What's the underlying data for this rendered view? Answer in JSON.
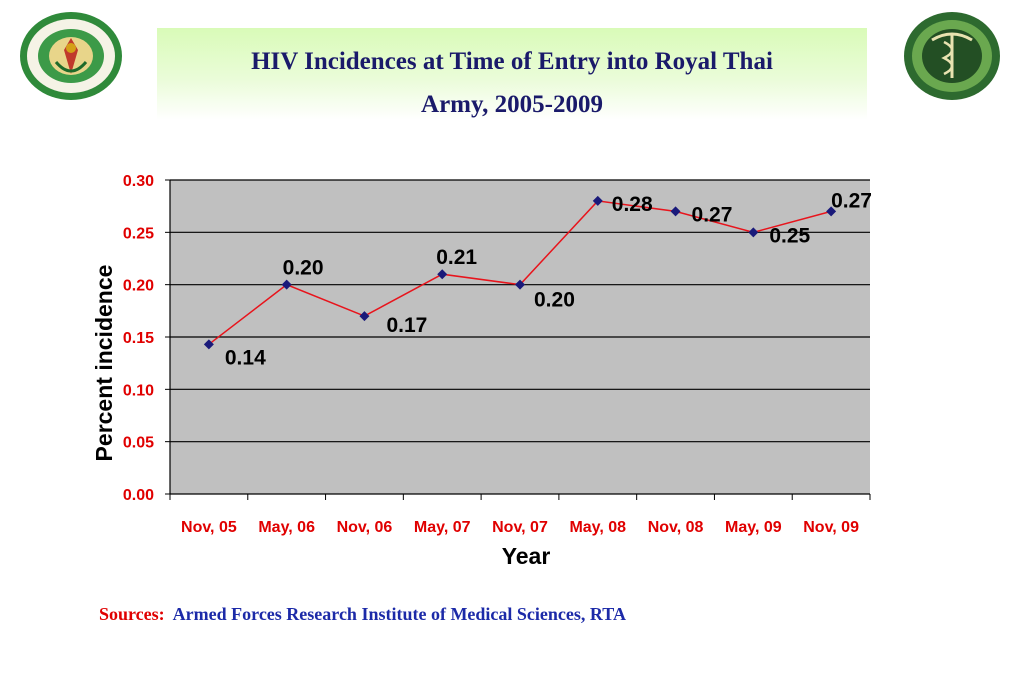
{
  "title": {
    "line1": "HIV Incidences at Time of Entry into Royal Thai",
    "line2": "Army, 2005-2009"
  },
  "logos": {
    "left_icon": "royal-thai-army-medical-research-seal-icon",
    "right_icon": "ministry-of-public-health-seal-icon"
  },
  "chart_data": {
    "type": "line",
    "categories": [
      "Nov, 05",
      "May, 06",
      "Nov, 06",
      "May, 07",
      "Nov, 07",
      "May, 08",
      "Nov, 08",
      "May, 09",
      "Nov, 09"
    ],
    "values": [
      0.143,
      0.2,
      0.17,
      0.21,
      0.2,
      0.28,
      0.27,
      0.25,
      0.27
    ],
    "data_labels": [
      "0.14",
      "0.20",
      "0.17",
      "0.21",
      "0.20",
      "0.28",
      "0.27",
      "0.25",
      "0.27"
    ],
    "xlabel": "Year",
    "ylabel": "Percent incidence",
    "ylim": [
      0,
      0.3
    ],
    "yticks": [
      "0.00",
      "0.05",
      "0.10",
      "0.15",
      "0.20",
      "0.25",
      "0.30"
    ],
    "grid": true,
    "legend": "none",
    "colors": {
      "line": "#e8141c",
      "marker": "#1a1a7a",
      "plot_bg": "#c0c0c0",
      "tick_labels": "#e00000"
    }
  },
  "sources": {
    "label": "Sources:",
    "text": "Armed Forces Research Institute of Medical Sciences, RTA"
  }
}
